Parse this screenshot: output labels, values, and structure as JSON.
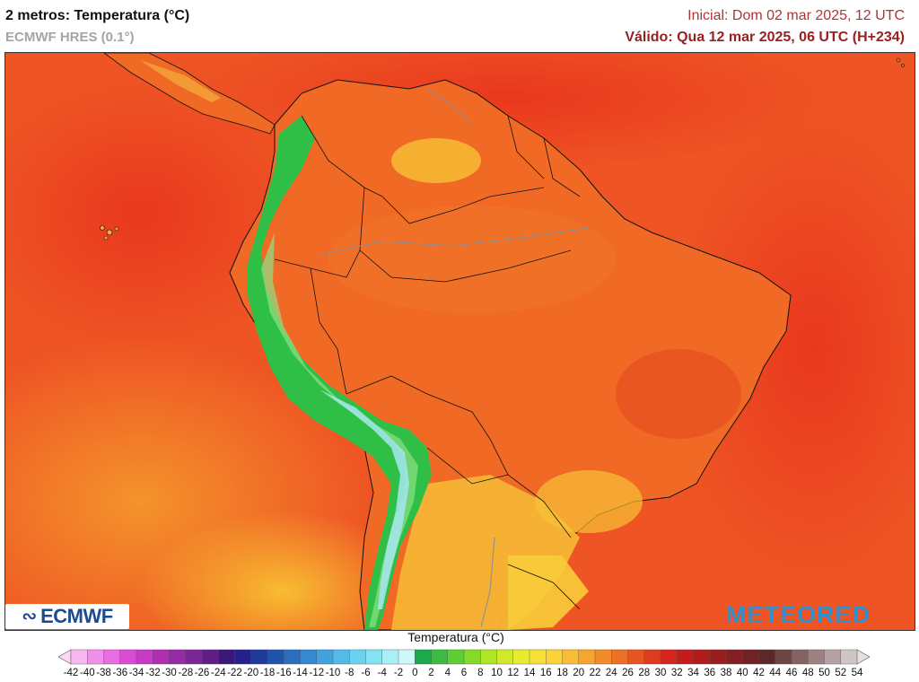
{
  "header": {
    "title": "2 metros: Temperatura (°C)",
    "model": "ECMWF HRES (0.1°)",
    "initial": "Inicial: Dom 02 mar 2025, 12 UTC",
    "valid": "Válido: Qua 12 mar 2025, 06 UTC (H+234)"
  },
  "logos": {
    "ecmwf": "ECMWF",
    "meteored": "METEORED"
  },
  "legend": {
    "title": "Temperatura (°C)",
    "unit": "°C",
    "min": -42,
    "max": 54,
    "step": 2,
    "tick_labels": [
      "-42",
      "-40",
      "-38",
      "-36",
      "-34",
      "-32",
      "-30",
      "-28",
      "-26",
      "-24",
      "-22",
      "-20",
      "-18",
      "-16",
      "-14",
      "-12",
      "-10",
      "-8",
      "-6",
      "-4",
      "-2",
      "0",
      "2",
      "4",
      "6",
      "8",
      "10",
      "12",
      "14",
      "16",
      "18",
      "20",
      "22",
      "24",
      "26",
      "28",
      "30",
      "32",
      "34",
      "36",
      "38",
      "40",
      "42",
      "44",
      "46",
      "48",
      "50",
      "52",
      "54"
    ],
    "colors": [
      "#ffd6f8",
      "#f7b8f0",
      "#f090ea",
      "#e66ee0",
      "#da4bd6",
      "#c63ac6",
      "#b02db4",
      "#972aa6",
      "#7c2596",
      "#5e1e86",
      "#3b1878",
      "#24228a",
      "#1e3a9c",
      "#1f54ae",
      "#2a6ec0",
      "#3688d0",
      "#42a2de",
      "#53bbe8",
      "#6ad2ef",
      "#86e3f3",
      "#a9eff6",
      "#cff7f8",
      "#1ea84e",
      "#3cbc42",
      "#5fcd34",
      "#86db2a",
      "#aee526",
      "#cfea2a",
      "#e8ec2e",
      "#f6e236",
      "#fbd239",
      "#f9bd35",
      "#f6a52f",
      "#f18b2a",
      "#ec7026",
      "#e65522",
      "#df3c1f",
      "#d6251c",
      "#c51b1a",
      "#b01c1c",
      "#9a1d1f",
      "#842022",
      "#6f2324",
      "#5c2828",
      "#6e4545",
      "#866262",
      "#9c8282",
      "#b5a2a2",
      "#cfc5c5",
      "#e4e0e0"
    ]
  },
  "map": {
    "ocean_color": "#ef5a22",
    "land_color": "#f26b25",
    "andes_color": "#27c145",
    "andes_peak_color": "#a6e6ee"
  }
}
